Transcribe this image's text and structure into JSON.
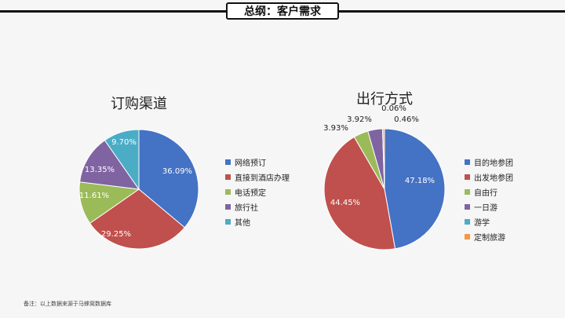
{
  "header": {
    "title": "总纲：客户需求"
  },
  "footnote": "备注：以上数据来源于马蜂窝数据库",
  "chart_data": [
    {
      "type": "pie",
      "title": "订购渠道",
      "legend_position": "right",
      "slices": [
        {
          "name": "网络预订",
          "value": 36.09,
          "label": "36.09%",
          "color": "#4472c4"
        },
        {
          "name": "直接到酒店办理",
          "value": 29.25,
          "label": "29.25%",
          "color": "#c0504d"
        },
        {
          "name": "电话预定",
          "value": 11.61,
          "label": "11.61%",
          "color": "#9bbb59"
        },
        {
          "name": "旅行社",
          "value": 13.35,
          "label": "13.35%",
          "color": "#8064a2"
        },
        {
          "name": "其他",
          "value": 9.7,
          "label": "9.70%",
          "color": "#4bacc6"
        }
      ]
    },
    {
      "type": "pie",
      "title": "出行方式",
      "legend_position": "right",
      "slices": [
        {
          "name": "目的地参团",
          "value": 47.18,
          "label": "47.18%",
          "color": "#4472c4"
        },
        {
          "name": "出发地参团",
          "value": 44.45,
          "label": "44.45%",
          "color": "#c0504d"
        },
        {
          "name": "自由行",
          "value": 3.93,
          "label": "3.93%",
          "color": "#9bbb59"
        },
        {
          "name": "一日游",
          "value": 3.92,
          "label": "3.92%",
          "color": "#8064a2"
        },
        {
          "name": "游学",
          "value": 0.06,
          "label": "0.06%",
          "color": "#4bacc6"
        },
        {
          "name": "定制旅游",
          "value": 0.46,
          "label": "0.46%",
          "color": "#f79646"
        }
      ]
    }
  ]
}
